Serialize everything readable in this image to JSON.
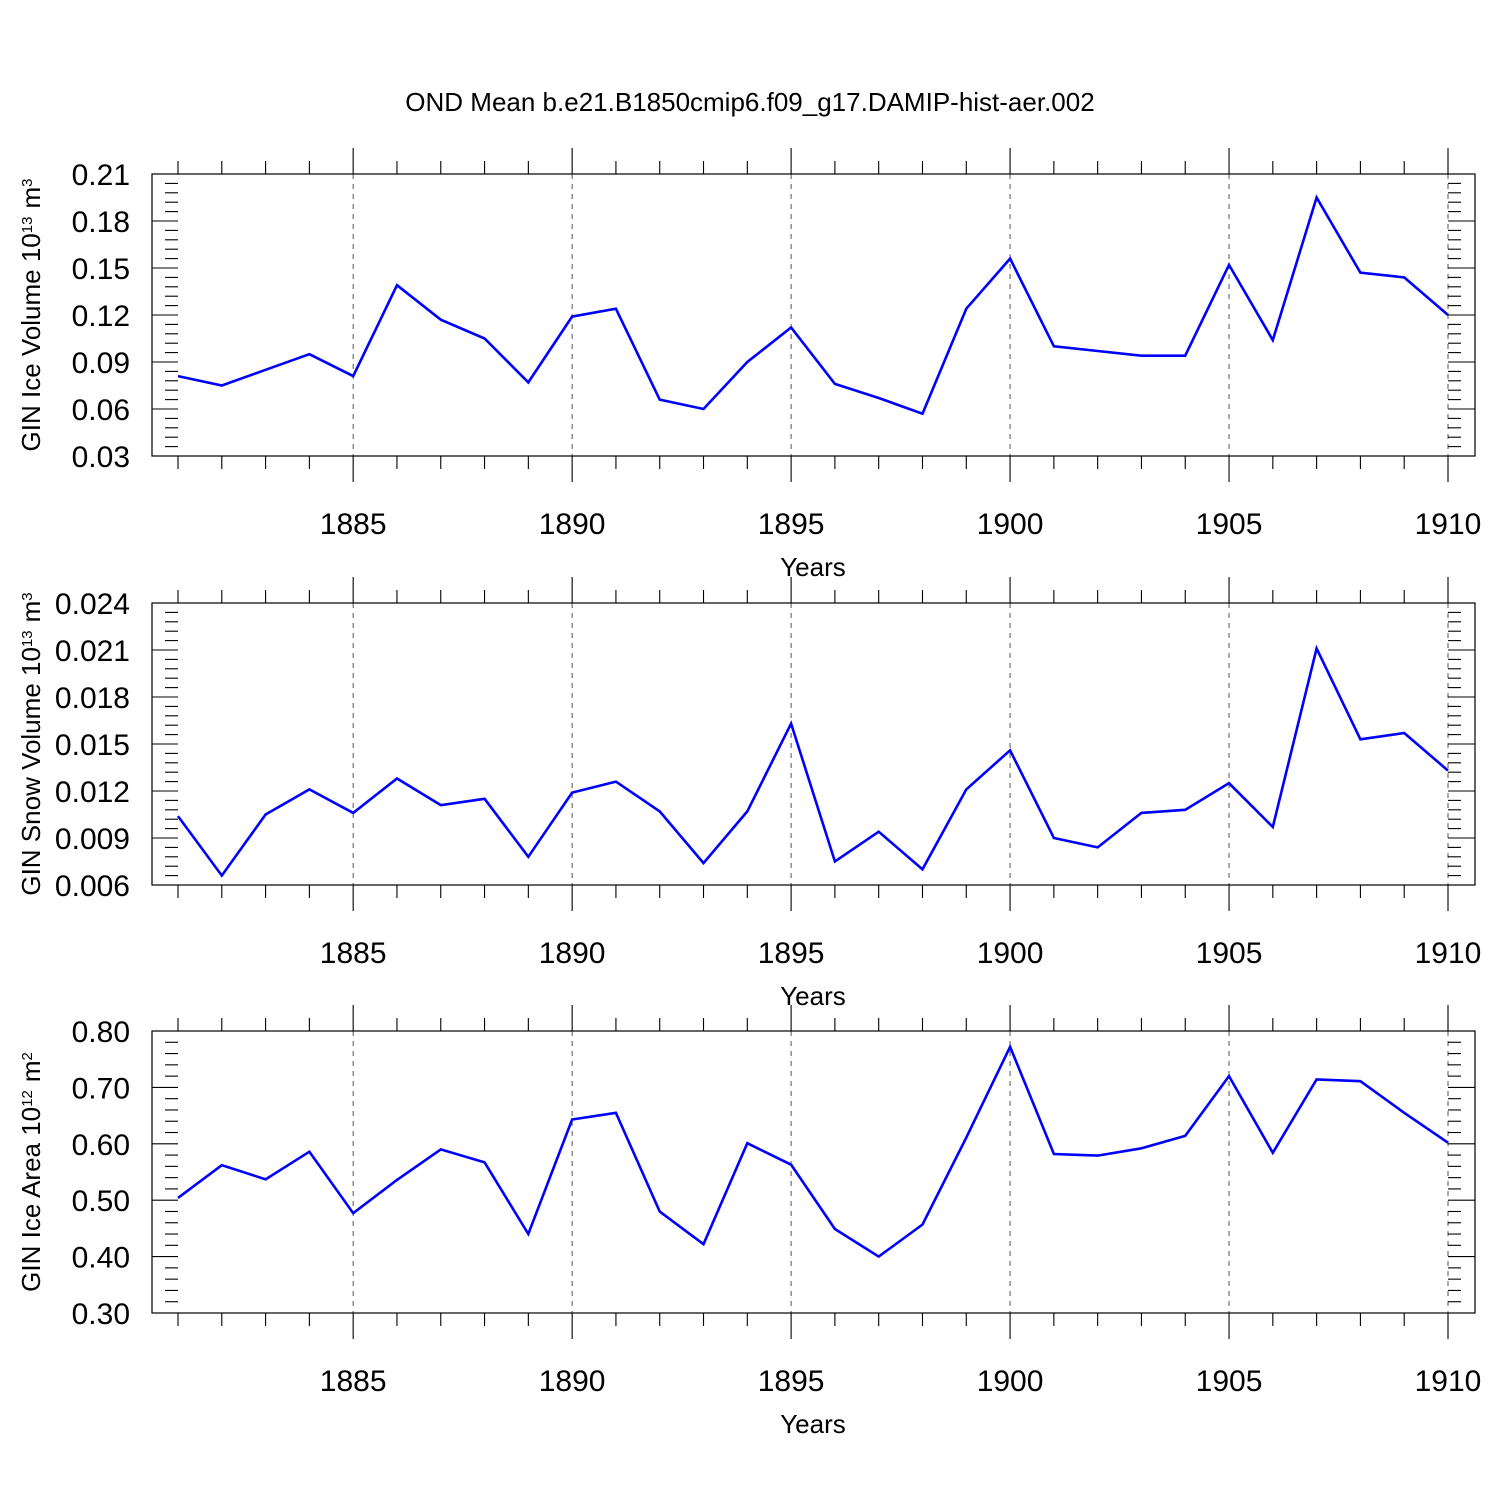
{
  "title": "OND Mean b.e21.B1850cmip6.f09_g17.DAMIP-hist-aer.002",
  "colors": {
    "series": "#0000ff",
    "axis": "#000000",
    "grid": "#555555",
    "background": "#ffffff"
  },
  "chart_data": [
    {
      "type": "line",
      "xlabel": "Years",
      "ylabel": "GIN Ice Volume 10",
      "ylabel_exp": "13",
      "ylabel_unit": "m",
      "ylabel_unit_exp": "3",
      "xlim": [
        1881,
        1910
      ],
      "ylim": [
        0.03,
        0.21
      ],
      "xticks": [
        1885,
        1890,
        1895,
        1900,
        1905,
        1910
      ],
      "xtick_labels": [
        "1885",
        "1890",
        "1895",
        "1900",
        "1905",
        "1910"
      ],
      "yticks": [
        0.03,
        0.06,
        0.09,
        0.12,
        0.15,
        0.18,
        0.21
      ],
      "ytick_labels": [
        "0.03",
        "0.06",
        "0.09",
        "0.12",
        "0.15",
        "0.18",
        "0.21"
      ],
      "grid": "vertical dashed at major x ticks",
      "series": [
        {
          "name": "GIN Ice Volume",
          "x": [
            1881,
            1882,
            1883,
            1884,
            1885,
            1886,
            1887,
            1888,
            1889,
            1890,
            1891,
            1892,
            1893,
            1894,
            1895,
            1896,
            1897,
            1898,
            1899,
            1900,
            1901,
            1902,
            1903,
            1904,
            1905,
            1906,
            1907,
            1908,
            1909,
            1910
          ],
          "values": [
            0.081,
            0.075,
            0.085,
            0.095,
            0.081,
            0.139,
            0.117,
            0.105,
            0.077,
            0.119,
            0.124,
            0.066,
            0.06,
            0.09,
            0.112,
            0.076,
            0.067,
            0.057,
            0.124,
            0.156,
            0.1,
            0.097,
            0.094,
            0.094,
            0.152,
            0.104,
            0.195,
            0.147,
            0.144,
            0.12
          ]
        }
      ]
    },
    {
      "type": "line",
      "xlabel": "Years",
      "ylabel": "GIN Snow Volume 10",
      "ylabel_exp": "13",
      "ylabel_unit": "m",
      "ylabel_unit_exp": "3",
      "xlim": [
        1881,
        1910
      ],
      "ylim": [
        0.006,
        0.024
      ],
      "xticks": [
        1885,
        1890,
        1895,
        1900,
        1905,
        1910
      ],
      "xtick_labels": [
        "1885",
        "1890",
        "1895",
        "1900",
        "1905",
        "1910"
      ],
      "yticks": [
        0.006,
        0.009,
        0.012,
        0.015,
        0.018,
        0.021,
        0.024
      ],
      "ytick_labels": [
        "0.006",
        "0.009",
        "0.012",
        "0.015",
        "0.018",
        "0.021",
        "0.024"
      ],
      "grid": "vertical dashed at major x ticks",
      "series": [
        {
          "name": "GIN Snow Volume",
          "x": [
            1881,
            1882,
            1883,
            1884,
            1885,
            1886,
            1887,
            1888,
            1889,
            1890,
            1891,
            1892,
            1893,
            1894,
            1895,
            1896,
            1897,
            1898,
            1899,
            1900,
            1901,
            1902,
            1903,
            1904,
            1905,
            1906,
            1907,
            1908,
            1909,
            1910
          ],
          "values": [
            0.0104,
            0.0066,
            0.0105,
            0.0121,
            0.0106,
            0.0128,
            0.0111,
            0.0115,
            0.0078,
            0.0119,
            0.0126,
            0.0107,
            0.0074,
            0.0107,
            0.0163,
            0.0075,
            0.0094,
            0.007,
            0.0121,
            0.0146,
            0.009,
            0.0084,
            0.0106,
            0.0108,
            0.0125,
            0.0097,
            0.0211,
            0.0153,
            0.0157,
            0.0133
          ]
        }
      ]
    },
    {
      "type": "line",
      "xlabel": "Years",
      "ylabel": "GIN Ice Area 10",
      "ylabel_exp": "12",
      "ylabel_unit": "m",
      "ylabel_unit_exp": "2",
      "xlim": [
        1881,
        1910
      ],
      "ylim": [
        0.3,
        0.8
      ],
      "xticks": [
        1885,
        1890,
        1895,
        1900,
        1905,
        1910
      ],
      "xtick_labels": [
        "1885",
        "1890",
        "1895",
        "1900",
        "1905",
        "1910"
      ],
      "yticks": [
        0.3,
        0.4,
        0.5,
        0.6,
        0.7,
        0.8
      ],
      "ytick_labels": [
        "0.30",
        "0.40",
        "0.50",
        "0.60",
        "0.70",
        "0.80"
      ],
      "grid": "vertical dashed at major x ticks",
      "series": [
        {
          "name": "GIN Ice Area",
          "x": [
            1881,
            1882,
            1883,
            1884,
            1885,
            1886,
            1887,
            1888,
            1889,
            1890,
            1891,
            1892,
            1893,
            1894,
            1895,
            1896,
            1897,
            1898,
            1899,
            1900,
            1901,
            1902,
            1903,
            1904,
            1905,
            1906,
            1907,
            1908,
            1909,
            1910
          ],
          "values": [
            0.504,
            0.562,
            0.537,
            0.586,
            0.477,
            0.536,
            0.59,
            0.567,
            0.44,
            0.643,
            0.655,
            0.48,
            0.422,
            0.601,
            0.563,
            0.449,
            0.4,
            0.457,
            0.611,
            0.772,
            0.582,
            0.579,
            0.592,
            0.614,
            0.72,
            0.584,
            0.714,
            0.711,
            0.655,
            0.602
          ]
        }
      ]
    }
  ]
}
